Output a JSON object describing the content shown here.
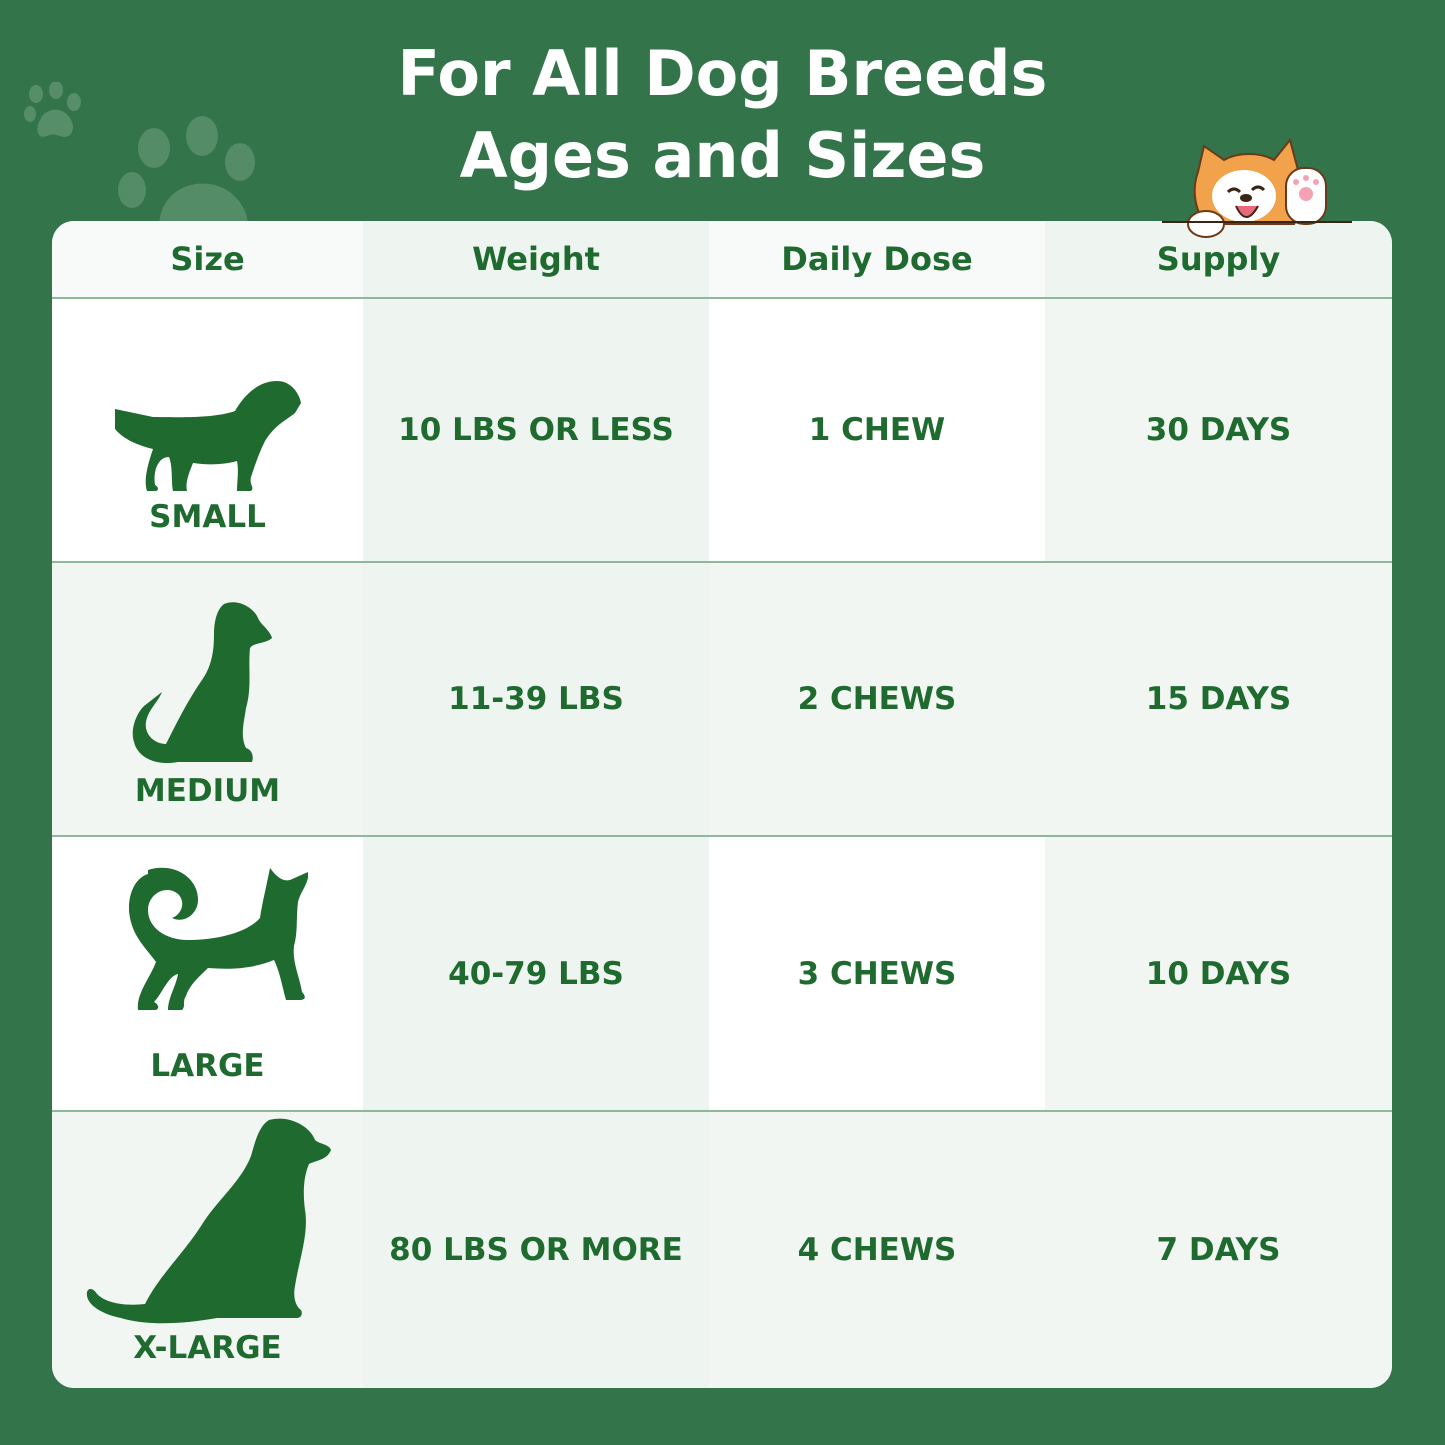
{
  "title": {
    "line1": "For All Dog Breeds",
    "line2": "Ages and Sizes"
  },
  "colors": {
    "background": "#33744a",
    "text": "#1f6a2f",
    "table": "#f6f9f7"
  },
  "table": {
    "headers": [
      "Size",
      "Weight",
      "Daily Dose",
      "Supply"
    ],
    "rows": [
      {
        "size": "SMALL",
        "icon": "small-dog-icon",
        "weight": "10 LBS OR LESS",
        "dose": "1 CHEW",
        "supply": "30 DAYS"
      },
      {
        "size": "MEDIUM",
        "icon": "medium-dog-icon",
        "weight": "11-39 LBS",
        "dose": "2 CHEWS",
        "supply": "15 DAYS"
      },
      {
        "size": "LARGE",
        "icon": "large-dog-icon",
        "weight": "40-79 LBS",
        "dose": "3 CHEWS",
        "supply": "10 DAYS"
      },
      {
        "size": "X-LARGE",
        "icon": "xlarge-dog-icon",
        "weight": "80 LBS OR MORE",
        "dose": "4 CHEWS",
        "supply": "7 DAYS"
      }
    ]
  }
}
